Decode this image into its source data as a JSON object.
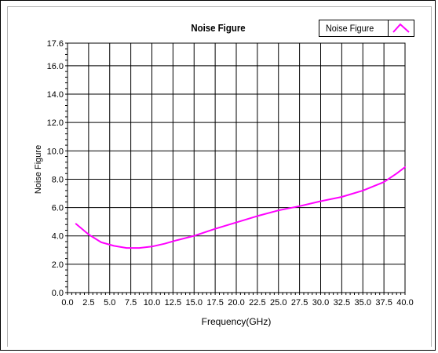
{
  "chart_data": {
    "type": "line",
    "title": "Noise Figure",
    "xlabel": "Frequency(GHz)",
    "ylabel": "Noise Figure",
    "xlim": [
      0.0,
      40.0
    ],
    "ylim": [
      0.0,
      17.6
    ],
    "x_ticks": [
      "0.0",
      "2.5",
      "5.0",
      "7.5",
      "10.0",
      "12.5",
      "15.0",
      "17.5",
      "20.0",
      "22.5",
      "25.0",
      "27.5",
      "30.0",
      "32.5",
      "35.0",
      "37.5",
      "40.0"
    ],
    "y_ticks": [
      "0.0",
      "2.0",
      "4.0",
      "6.0",
      "8.0",
      "10.0",
      "12.0",
      "14.0",
      "16.0",
      "17.6"
    ],
    "grid": true,
    "legend_position": "top-right",
    "series": [
      {
        "name": "Noise Figure",
        "color": "#ff00ff",
        "x": [
          1.0,
          2.5,
          4.0,
          5.5,
          7.0,
          8.5,
          10.0,
          11.5,
          13.0,
          15.0,
          17.5,
          20.0,
          22.5,
          25.0,
          27.5,
          30.0,
          32.5,
          35.0,
          37.5,
          39.0,
          40.0
        ],
        "y": [
          4.85,
          4.1,
          3.55,
          3.3,
          3.15,
          3.15,
          3.25,
          3.45,
          3.7,
          4.0,
          4.5,
          4.95,
          5.4,
          5.8,
          6.1,
          6.45,
          6.75,
          7.2,
          7.8,
          8.4,
          8.85
        ]
      }
    ]
  }
}
